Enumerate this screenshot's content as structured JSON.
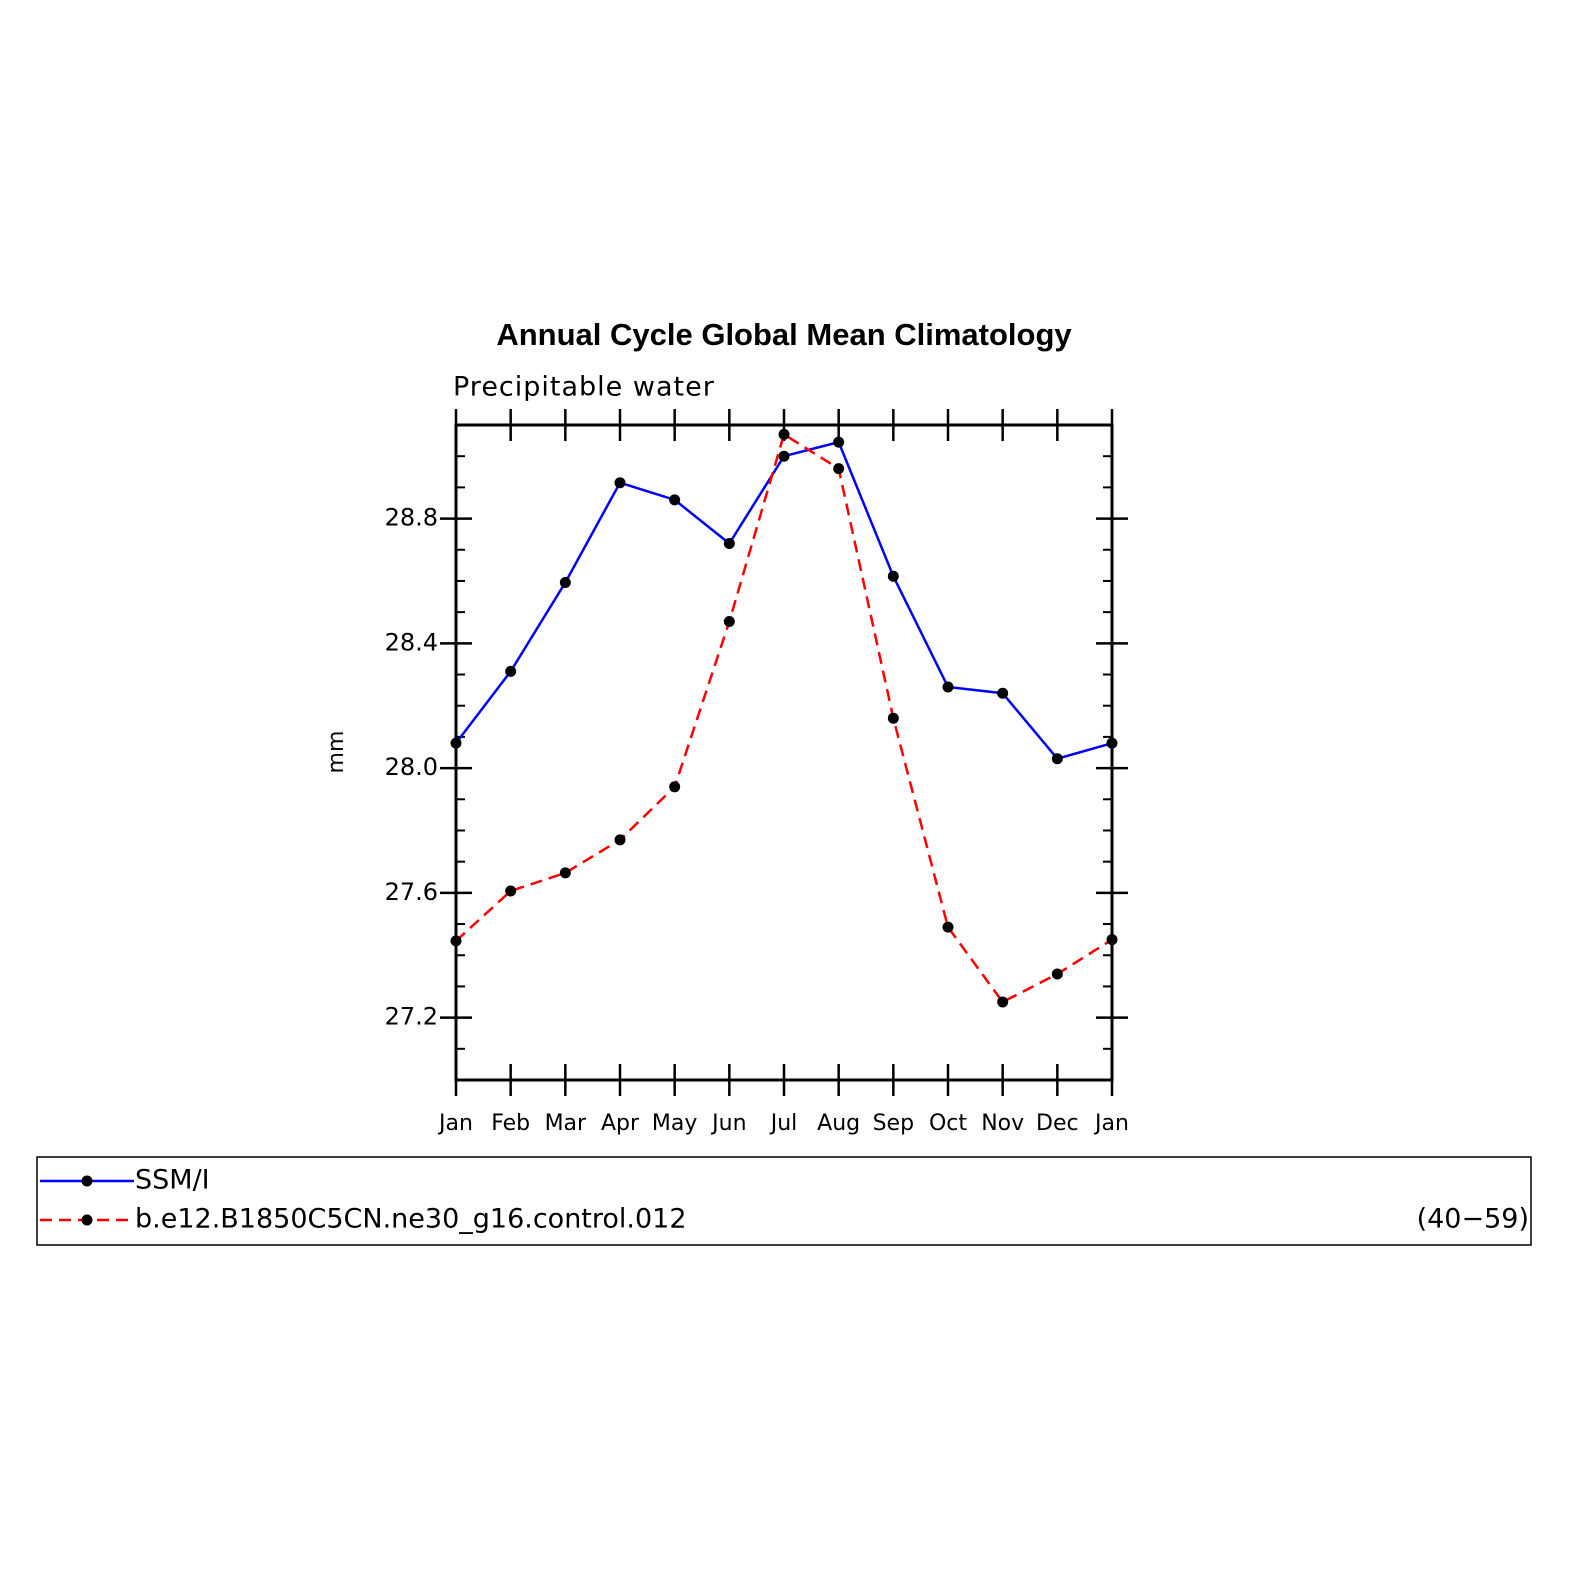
{
  "chart_data": {
    "type": "line",
    "title": "Annual Cycle Global Mean Climatology",
    "subtitle": "Precipitable water",
    "y_label": "mm",
    "annotation": "(40−59)",
    "categories": [
      "Jan",
      "Feb",
      "Mar",
      "Apr",
      "May",
      "Jun",
      "Jul",
      "Aug",
      "Sep",
      "Oct",
      "Nov",
      "Dec",
      "Jan"
    ],
    "series": [
      {
        "name": "SSM/I",
        "color": "#0000ff",
        "dash": false,
        "values": [
          28.08,
          28.31,
          28.595,
          28.915,
          28.86,
          28.72,
          29.0,
          29.045,
          28.615,
          28.26,
          28.24,
          28.03,
          28.08
        ]
      },
      {
        "name": "b.e12.B1850C5CN.ne30_g16.control.012",
        "color": "#ff0000",
        "dash": true,
        "values": [
          27.446,
          27.606,
          27.664,
          27.77,
          27.94,
          28.47,
          29.07,
          28.96,
          28.16,
          27.49,
          27.25,
          27.34,
          27.45
        ]
      }
    ],
    "ylim": [
      27.0,
      29.1
    ],
    "yticks": [
      {
        "value": 27.2,
        "label": "27.2"
      },
      {
        "value": 27.6,
        "label": "27.6"
      },
      {
        "value": 28.0,
        "label": "28.0"
      },
      {
        "value": 28.4,
        "label": "28.4"
      },
      {
        "value": 28.8,
        "label": "28.8"
      }
    ],
    "yminorticks": [
      27.1,
      27.3,
      27.4,
      27.5,
      27.7,
      27.8,
      27.9,
      28.1,
      28.2,
      28.3,
      28.5,
      28.6,
      28.7,
      28.9,
      29.0
    ]
  }
}
